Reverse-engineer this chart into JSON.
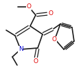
{
  "bg_color": "#ffffff",
  "bond_color": "#1a1a1a",
  "atom_colors": {
    "O": "#e00000",
    "N": "#0000cc"
  },
  "figsize": [
    1.21,
    1.05
  ],
  "dpi": 100,
  "lw": 1.2,
  "dlw": 0.9
}
